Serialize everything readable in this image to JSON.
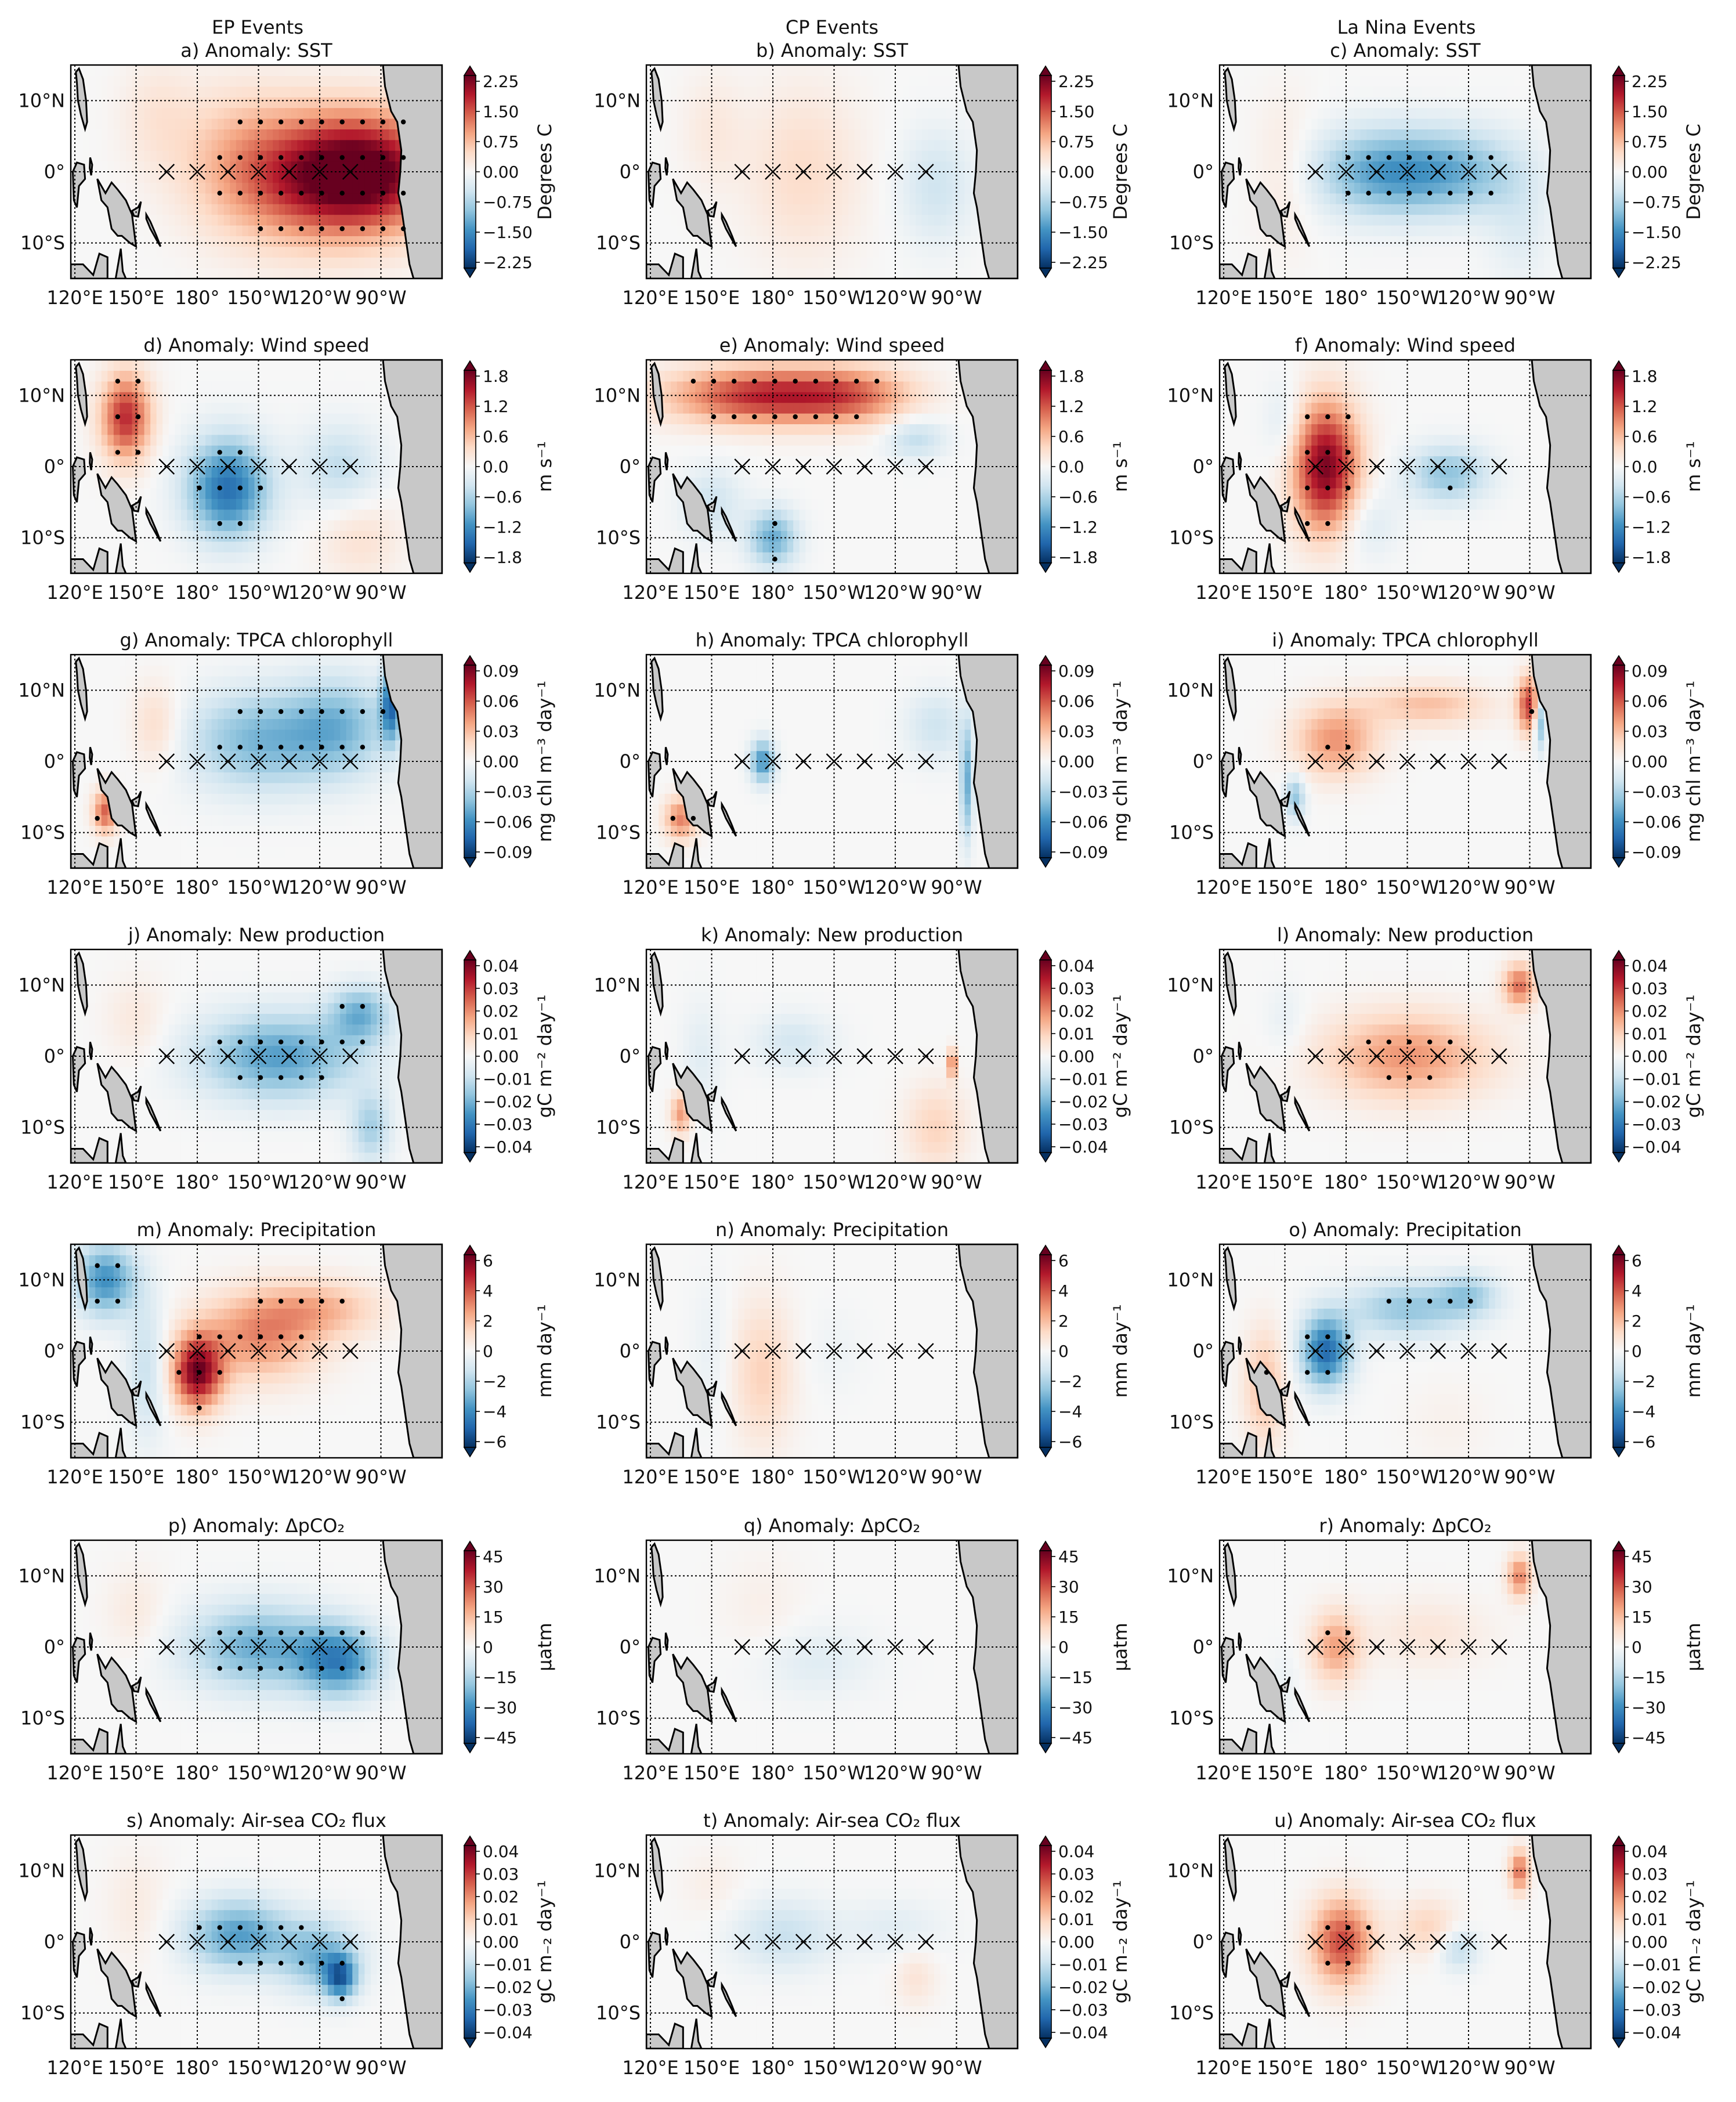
{
  "columns": [
    "EP Events",
    "CP Events",
    "La Nina Events"
  ],
  "lon_ticks": [
    "120°E",
    "150°E",
    "180°",
    "150°W",
    "120°W",
    "90°W"
  ],
  "lat_ticks": [
    "10°N",
    "0°",
    "10°S"
  ],
  "colors": {
    "neg_dark": "#053061",
    "neutral": "#f7f7f7",
    "pos_dark": "#67001f",
    "land": "#c8c8c8"
  },
  "chart_data": [
    {
      "type": "heatmap",
      "row": 0,
      "title": "Anomaly: SST",
      "cbar_label": "Degrees C",
      "ticks": [
        "2.25",
        "1.50",
        "0.75",
        "0.00",
        "−0.75",
        "−1.50",
        "−2.25"
      ],
      "vmax": 2.5,
      "panels": [
        {
          "letter": "a",
          "blobs": [
            [
              -95,
              0,
              38,
              8,
              2.2
            ],
            [
              -125,
              -1,
              40,
              9,
              1.3
            ],
            [
              -160,
              2,
              30,
              10,
              0.6
            ],
            [
              160,
              8,
              18,
              8,
              0.3
            ]
          ]
        },
        {
          "letter": "b",
          "blobs": [
            [
              -165,
              0,
              28,
              12,
              0.45
            ],
            [
              -100,
              -2,
              18,
              8,
              -0.5
            ],
            [
              150,
              6,
              15,
              8,
              0.25
            ]
          ]
        },
        {
          "letter": "c",
          "blobs": [
            [
              -160,
              0,
              35,
              6,
              -1.4
            ],
            [
              -120,
              0,
              30,
              6,
              -0.8
            ],
            [
              -95,
              -8,
              15,
              8,
              -0.3
            ],
            [
              150,
              0,
              15,
              10,
              0.3
            ]
          ]
        }
      ]
    },
    {
      "type": "heatmap",
      "row": 1,
      "title": "Anomaly: Wind speed",
      "cbar_label": "m s⁻¹",
      "ticks": [
        "1.8",
        "1.2",
        "0.6",
        "0.0",
        "−0.6",
        "−1.2",
        "−1.8"
      ],
      "vmax": 2.0,
      "panels": [
        {
          "letter": "d",
          "blobs": [
            [
              145,
              7,
              12,
              6,
              1.5
            ],
            [
              -165,
              -3,
              20,
              7,
              -1.5
            ],
            [
              -110,
              0,
              20,
              6,
              -0.5
            ],
            [
              -100,
              -10,
              20,
              6,
              0.3
            ]
          ]
        },
        {
          "letter": "e",
          "blobs": [
            [
              175,
              10,
              45,
              4,
              1.5
            ],
            [
              -140,
              10,
              30,
              4,
              0.8
            ],
            [
              180,
              -10,
              12,
              4,
              -1.0
            ],
            [
              150,
              -5,
              15,
              5,
              -0.4
            ],
            [
              -110,
              4,
              15,
              3,
              -0.5
            ]
          ]
        },
        {
          "letter": "f",
          "blobs": [
            [
              170,
              0,
              16,
              9,
              1.9
            ],
            [
              -130,
              -1,
              20,
              4,
              -0.8
            ],
            [
              -170,
              -8,
              15,
              5,
              -0.3
            ],
            [
              150,
              6,
              10,
              6,
              -0.3
            ]
          ]
        }
      ]
    },
    {
      "type": "heatmap",
      "row": 2,
      "title": "Anomaly: TPCA chlorophyll",
      "cbar_label": "mg chl m⁻³ day⁻¹",
      "ticks": [
        "0.09",
        "0.06",
        "0.03",
        "0.00",
        "−0.03",
        "−0.06",
        "−0.09"
      ],
      "vmax": 0.1,
      "panels": [
        {
          "letter": "g",
          "blobs": [
            [
              -150,
              3,
              35,
              7,
              -0.045
            ],
            [
              -110,
              5,
              25,
              7,
              -0.04
            ],
            [
              -85,
              8,
              5,
              5,
              -0.07
            ],
            [
              135,
              -7,
              6,
              3,
              0.06
            ],
            [
              160,
              5,
              12,
              6,
              0.02
            ]
          ]
        },
        {
          "letter": "h",
          "blobs": [
            [
              175,
              0,
              6,
              3,
              -0.06
            ],
            [
              -100,
              5,
              15,
              5,
              -0.02
            ],
            [
              135,
              -8,
              8,
              3,
              0.05
            ],
            [
              -85,
              -3,
              3,
              8,
              -0.05
            ]
          ]
        },
        {
          "letter": "i",
          "blobs": [
            [
              175,
              3,
              20,
              5,
              0.045
            ],
            [
              -140,
              8,
              30,
              3,
              0.03
            ],
            [
              -90,
              8,
              6,
              4,
              0.07
            ],
            [
              -85,
              6,
              3,
              4,
              -0.06
            ],
            [
              155,
              -5,
              5,
              3,
              -0.04
            ]
          ]
        }
      ]
    },
    {
      "type": "heatmap",
      "row": 3,
      "title": "Anomaly: New production",
      "cbar_label": "gC m⁻² day⁻¹",
      "ticks": [
        "0.04",
        "0.03",
        "0.02",
        "0.01",
        "0.00",
        "−0.01",
        "−0.02",
        "−0.03",
        "−0.04"
      ],
      "vmax": 0.045,
      "panels": [
        {
          "letter": "j",
          "blobs": [
            [
              -140,
              0,
              40,
              6,
              -0.025
            ],
            [
              -100,
              6,
              15,
              4,
              -0.02
            ],
            [
              -95,
              -10,
              10,
              5,
              -0.015
            ],
            [
              150,
              5,
              15,
              6,
              0.005
            ]
          ]
        },
        {
          "letter": "k",
          "blobs": [
            [
              -170,
              2,
              20,
              4,
              -0.008
            ],
            [
              -100,
              -10,
              15,
              6,
              0.01
            ],
            [
              -92,
              -1,
              2,
              2,
              0.03
            ],
            [
              145,
              0,
              10,
              8,
              -0.005
            ],
            [
              135,
              -8,
              5,
              3,
              0.02
            ]
          ]
        },
        {
          "letter": "l",
          "blobs": [
            [
              -150,
              0,
              40,
              6,
              0.02
            ],
            [
              -95,
              10,
              8,
              3,
              0.025
            ],
            [
              150,
              5,
              10,
              5,
              -0.004
            ]
          ]
        }
      ]
    },
    {
      "type": "heatmap",
      "row": 4,
      "title": "Anomaly: Precipitation",
      "cbar_label": "mm day⁻¹",
      "ticks": [
        "6",
        "4",
        "2",
        "0",
        "−2",
        "−4",
        "−6"
      ],
      "vmax": 6.5,
      "panels": [
        {
          "letter": "m",
          "blobs": [
            [
              180,
              -3,
              12,
              5,
              6.0
            ],
            [
              -150,
              2,
              30,
              6,
              3.0
            ],
            [
              -120,
              6,
              30,
              4,
              2.0
            ],
            [
              135,
              10,
              15,
              5,
              -4.0
            ],
            [
              155,
              -2,
              10,
              10,
              -1.5
            ]
          ]
        },
        {
          "letter": "n",
          "blobs": [
            [
              175,
              -3,
              15,
              10,
              1.5
            ],
            [
              -150,
              0,
              15,
              6,
              -0.3
            ],
            [
              150,
              0,
              10,
              10,
              -0.5
            ]
          ]
        },
        {
          "letter": "o",
          "blobs": [
            [
              170,
              0,
              12,
              5,
              -5.0
            ],
            [
              -150,
              6,
              30,
              4,
              -2.5
            ],
            [
              -120,
              8,
              15,
              3,
              -2.0
            ],
            [
              140,
              -5,
              10,
              8,
              2.0
            ],
            [
              -130,
              -10,
              20,
              6,
              0.3
            ]
          ]
        }
      ]
    },
    {
      "type": "heatmap",
      "row": 5,
      "title": "Anomaly: ΔpCO₂",
      "cbar_label": "µatm",
      "ticks": [
        "45",
        "30",
        "15",
        "0",
        "−15",
        "−30",
        "−45"
      ],
      "vmax": 50,
      "panels": [
        {
          "letter": "p",
          "blobs": [
            [
              -150,
              0,
              35,
              6,
              -25
            ],
            [
              -110,
              -2,
              20,
              5,
              -30
            ],
            [
              150,
              5,
              15,
              6,
              5
            ]
          ]
        },
        {
          "letter": "q",
          "blobs": [
            [
              -160,
              -2,
              30,
              5,
              -6
            ],
            [
              175,
              5,
              20,
              8,
              3
            ]
          ]
        },
        {
          "letter": "r",
          "blobs": [
            [
              175,
              0,
              12,
              5,
              20
            ],
            [
              -140,
              2,
              30,
              5,
              6
            ],
            [
              -95,
              10,
              6,
              3,
              25
            ],
            [
              150,
              -5,
              8,
              5,
              -3
            ]
          ]
        }
      ]
    },
    {
      "type": "heatmap",
      "row": 6,
      "title": "Anomaly: Air-sea CO₂ flux",
      "cbar_label": "gC m₋₂ day⁻¹",
      "ticks": [
        "0.04",
        "0.03",
        "0.02",
        "0.01",
        "0.00",
        "−0.01",
        "−0.02",
        "−0.03",
        "−0.04"
      ],
      "vmax": 0.045,
      "panels": [
        {
          "letter": "s",
          "blobs": [
            [
              -160,
              1,
              25,
              5,
              -0.025
            ],
            [
              -120,
              -2,
              20,
              5,
              -0.02
            ],
            [
              -110,
              -5,
              8,
              3,
              -0.03
            ],
            [
              150,
              5,
              15,
              8,
              0.004
            ]
          ]
        },
        {
          "letter": "t",
          "blobs": [
            [
              -175,
              1,
              25,
              5,
              -0.01
            ],
            [
              -120,
              2,
              25,
              4,
              -0.005
            ],
            [
              -110,
              -5,
              10,
              4,
              0.006
            ],
            [
              150,
              8,
              15,
              5,
              0.003
            ]
          ]
        },
        {
          "letter": "u",
          "blobs": [
            [
              178,
              0,
              15,
              6,
              0.03
            ],
            [
              -140,
              2,
              15,
              4,
              0.01
            ],
            [
              -125,
              -1,
              10,
              3,
              -0.012
            ],
            [
              -95,
              10,
              5,
              3,
              0.025
            ]
          ]
        }
      ]
    }
  ]
}
